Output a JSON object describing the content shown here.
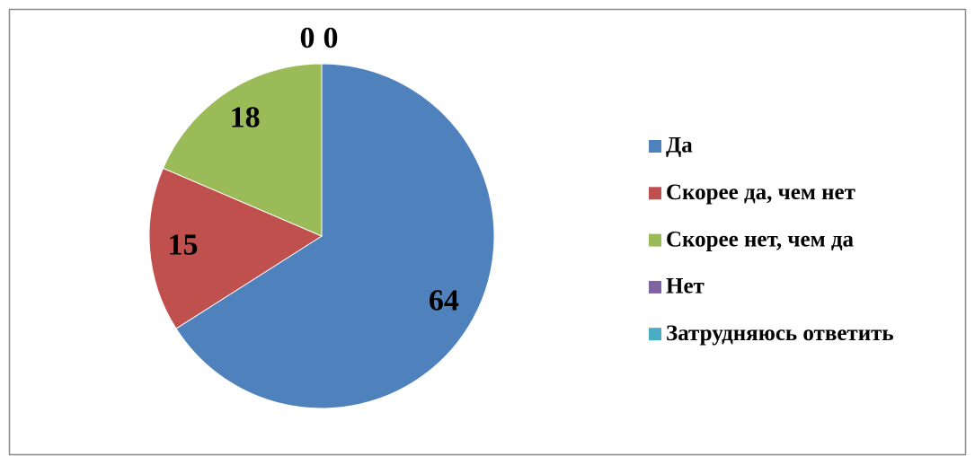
{
  "chart_data": {
    "type": "pie",
    "categories": [
      "Да",
      "Скорее да, чем нет",
      "Скорее нет, чем да",
      "Нет",
      "Затрудняюсь ответить"
    ],
    "values": [
      64,
      15,
      18,
      0,
      0
    ],
    "colors": [
      "#4f81bd",
      "#c0504d",
      "#9bbb59",
      "#8064a2",
      "#4bacc6"
    ],
    "legend": "right"
  }
}
